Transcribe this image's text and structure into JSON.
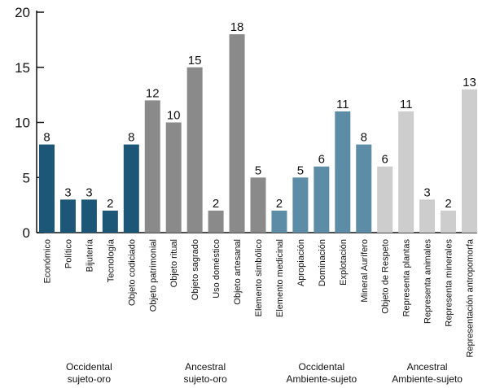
{
  "chart_data": {
    "type": "bar",
    "ylim": [
      0,
      20
    ],
    "yticks": [
      0,
      5,
      10,
      15,
      20
    ],
    "grid": false,
    "groups": [
      {
        "line1": "Occidental",
        "line2": "sujeto-oro",
        "color": "#1d5778",
        "categories": [
          "Económico",
          "Político",
          "Bijutería",
          "Tecnología",
          "Objeto codiciado"
        ],
        "values": [
          8,
          3,
          3,
          2,
          8
        ]
      },
      {
        "line1": "Ancestral",
        "line2": "sujeto-oro",
        "color": "#8a8a8a",
        "categories": [
          "Objeto patrimonial",
          "Objeto ritual",
          "Objeto sagrado",
          "Uso doméstico",
          "Objeto artesanal",
          "Elemento simbólico"
        ],
        "values": [
          12,
          10,
          15,
          2,
          18,
          5
        ]
      },
      {
        "line1": "Occidental",
        "line2": "Ambiente-sujeto",
        "color": "#5c8ca6",
        "categories": [
          "Elemento medicinal",
          "Apropiación",
          "Dominación",
          "Explotación",
          "Mineral Aurífero"
        ],
        "values": [
          2,
          5,
          6,
          11,
          8
        ]
      },
      {
        "line1": "Ancestral",
        "line2": "Ambiente-sujeto",
        "color": "#cdcdcd",
        "categories": [
          "Objeto de Respeto",
          "Representa plantas",
          "Representa animales",
          "Representa minerales",
          "Representación antropomorfa"
        ],
        "values": [
          6,
          11,
          3,
          2,
          13
        ]
      }
    ]
  }
}
